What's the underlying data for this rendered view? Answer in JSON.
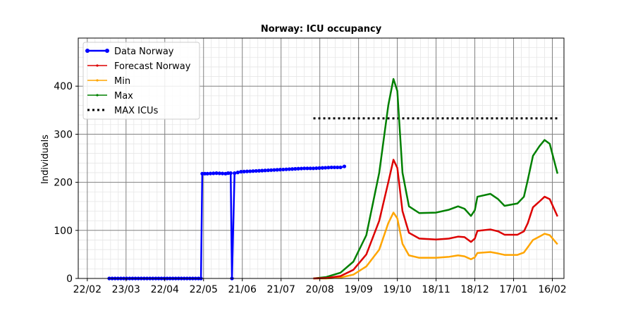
{
  "chart_data": {
    "type": "line",
    "title": "Norway: ICU occupancy",
    "xlabel": "",
    "ylabel": "Individuals",
    "x_ticks": [
      "22/02",
      "23/03",
      "22/04",
      "22/05",
      "21/06",
      "21/07",
      "20/08",
      "19/09",
      "19/10",
      "18/11",
      "18/12",
      "17/01",
      "16/02"
    ],
    "xlim": [
      "2020-02-15",
      "2021-02-25"
    ],
    "y_ticks": [
      0,
      100,
      200,
      300,
      400
    ],
    "ylim": [
      0,
      500
    ],
    "grid": true,
    "legend_position": "top-left",
    "series": [
      {
        "name": "Data Norway",
        "color": "#0000ff",
        "style": "solid-markers",
        "points": [
          [
            "2020-03-10",
            0
          ],
          [
            "2020-04-15",
            0
          ],
          [
            "2020-05-18",
            0
          ],
          [
            "2020-05-20",
            0
          ],
          [
            "2020-05-21",
            218
          ],
          [
            "2020-05-25",
            218
          ],
          [
            "2020-06-01",
            219
          ],
          [
            "2020-06-08",
            218
          ],
          [
            "2020-06-10",
            219
          ],
          [
            "2020-06-12",
            219
          ],
          [
            "2020-06-13",
            0
          ],
          [
            "2020-06-15",
            219
          ],
          [
            "2020-06-20",
            222
          ],
          [
            "2020-06-27",
            223
          ],
          [
            "2020-07-04",
            224
          ],
          [
            "2020-07-11",
            225
          ],
          [
            "2020-07-18",
            226
          ],
          [
            "2020-07-25",
            227
          ],
          [
            "2020-08-01",
            228
          ],
          [
            "2020-08-08",
            229
          ],
          [
            "2020-08-15",
            229
          ],
          [
            "2020-08-22",
            230
          ],
          [
            "2020-08-29",
            231
          ],
          [
            "2020-09-05",
            231
          ],
          [
            "2020-09-08",
            233
          ]
        ]
      },
      {
        "name": "Forecast Norway",
        "color": "#dd0000",
        "style": "solid",
        "points": [
          [
            "2020-08-15",
            0
          ],
          [
            "2020-08-25",
            1
          ],
          [
            "2020-09-05",
            5
          ],
          [
            "2020-09-15",
            18
          ],
          [
            "2020-09-25",
            50
          ],
          [
            "2020-10-05",
            120
          ],
          [
            "2020-10-12",
            200
          ],
          [
            "2020-10-16",
            247
          ],
          [
            "2020-10-19",
            230
          ],
          [
            "2020-10-23",
            140
          ],
          [
            "2020-10-28",
            95
          ],
          [
            "2020-11-05",
            83
          ],
          [
            "2020-11-18",
            81
          ],
          [
            "2020-11-28",
            83
          ],
          [
            "2020-12-05",
            87
          ],
          [
            "2020-12-10",
            86
          ],
          [
            "2020-12-15",
            76
          ],
          [
            "2020-12-18",
            83
          ],
          [
            "2020-12-20",
            99
          ],
          [
            "2020-12-30",
            102
          ],
          [
            "2021-01-05",
            98
          ],
          [
            "2021-01-10",
            91
          ],
          [
            "2021-01-20",
            91
          ],
          [
            "2021-01-25",
            98
          ],
          [
            "2021-01-28",
            115
          ],
          [
            "2021-02-01",
            148
          ],
          [
            "2021-02-06",
            160
          ],
          [
            "2021-02-10",
            170
          ],
          [
            "2021-02-14",
            165
          ],
          [
            "2021-02-20",
            129
          ]
        ]
      },
      {
        "name": "Min",
        "color": "#ffa500",
        "style": "solid",
        "points": [
          [
            "2020-08-15",
            0
          ],
          [
            "2020-08-25",
            0
          ],
          [
            "2020-09-05",
            2
          ],
          [
            "2020-09-15",
            8
          ],
          [
            "2020-09-25",
            25
          ],
          [
            "2020-10-05",
            60
          ],
          [
            "2020-10-12",
            115
          ],
          [
            "2020-10-16",
            137
          ],
          [
            "2020-10-19",
            125
          ],
          [
            "2020-10-23",
            72
          ],
          [
            "2020-10-28",
            48
          ],
          [
            "2020-11-05",
            43
          ],
          [
            "2020-11-18",
            43
          ],
          [
            "2020-11-28",
            45
          ],
          [
            "2020-12-05",
            48
          ],
          [
            "2020-12-10",
            46
          ],
          [
            "2020-12-15",
            40
          ],
          [
            "2020-12-18",
            44
          ],
          [
            "2020-12-20",
            53
          ],
          [
            "2020-12-30",
            55
          ],
          [
            "2021-01-05",
            52
          ],
          [
            "2021-01-10",
            49
          ],
          [
            "2021-01-20",
            49
          ],
          [
            "2021-01-25",
            54
          ],
          [
            "2021-01-28",
            65
          ],
          [
            "2021-02-01",
            80
          ],
          [
            "2021-02-06",
            87
          ],
          [
            "2021-02-10",
            93
          ],
          [
            "2021-02-14",
            90
          ],
          [
            "2021-02-20",
            71
          ]
        ]
      },
      {
        "name": "Max",
        "color": "#008000",
        "style": "solid",
        "points": [
          [
            "2020-08-15",
            0
          ],
          [
            "2020-08-25",
            3
          ],
          [
            "2020-09-05",
            12
          ],
          [
            "2020-09-15",
            35
          ],
          [
            "2020-09-25",
            90
          ],
          [
            "2020-10-05",
            220
          ],
          [
            "2020-10-12",
            360
          ],
          [
            "2020-10-16",
            415
          ],
          [
            "2020-10-19",
            390
          ],
          [
            "2020-10-23",
            220
          ],
          [
            "2020-10-28",
            150
          ],
          [
            "2020-11-05",
            136
          ],
          [
            "2020-11-18",
            137
          ],
          [
            "2020-11-28",
            143
          ],
          [
            "2020-12-05",
            150
          ],
          [
            "2020-12-10",
            145
          ],
          [
            "2020-12-15",
            130
          ],
          [
            "2020-12-18",
            142
          ],
          [
            "2020-12-20",
            170
          ],
          [
            "2020-12-30",
            176
          ],
          [
            "2021-01-05",
            165
          ],
          [
            "2021-01-10",
            151
          ],
          [
            "2021-01-20",
            156
          ],
          [
            "2021-01-25",
            170
          ],
          [
            "2021-01-28",
            205
          ],
          [
            "2021-02-01",
            255
          ],
          [
            "2021-02-06",
            275
          ],
          [
            "2021-02-10",
            288
          ],
          [
            "2021-02-14",
            280
          ],
          [
            "2021-02-20",
            218
          ]
        ]
      },
      {
        "name": "MAX ICUs",
        "color": "#000000",
        "style": "dotted",
        "points": [
          [
            "2020-08-15",
            333
          ],
          [
            "2021-02-20",
            333
          ]
        ]
      }
    ]
  }
}
